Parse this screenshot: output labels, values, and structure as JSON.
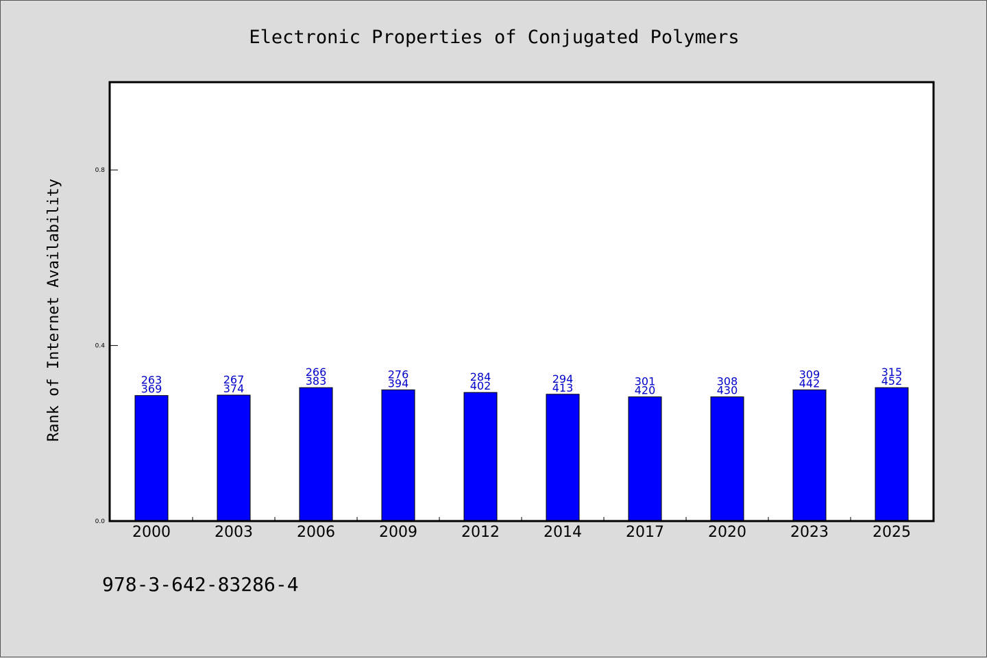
{
  "chart_data": {
    "type": "bar",
    "title": "Electronic Properties of Conjugated Polymers",
    "xlabel": "",
    "ylabel": "Rank of Internet Availability",
    "categories": [
      "2000",
      "2003",
      "2006",
      "2009",
      "2012",
      "2014",
      "2017",
      "2020",
      "2023",
      "2025"
    ],
    "values": [
      0.286,
      0.287,
      0.304,
      0.299,
      0.293,
      0.289,
      0.283,
      0.283,
      0.299,
      0.304
    ],
    "data_labels": [
      [
        "263",
        "369"
      ],
      [
        "267",
        "374"
      ],
      [
        "266",
        "383"
      ],
      [
        "276",
        "394"
      ],
      [
        "284",
        "402"
      ],
      [
        "294",
        "413"
      ],
      [
        "301",
        "420"
      ],
      [
        "308",
        "430"
      ],
      [
        "309",
        "442"
      ],
      [
        "315",
        "452"
      ]
    ],
    "ylim": [
      0,
      1.0
    ],
    "yticks": [
      0.0,
      0.4,
      0.8
    ],
    "ytick_labels": [
      "0.0",
      "0.4",
      "0.8"
    ],
    "grid": false,
    "bar_color": "#0000ff",
    "label_color": "#0000cc"
  },
  "footer_text": "978-3-642-83286-4"
}
